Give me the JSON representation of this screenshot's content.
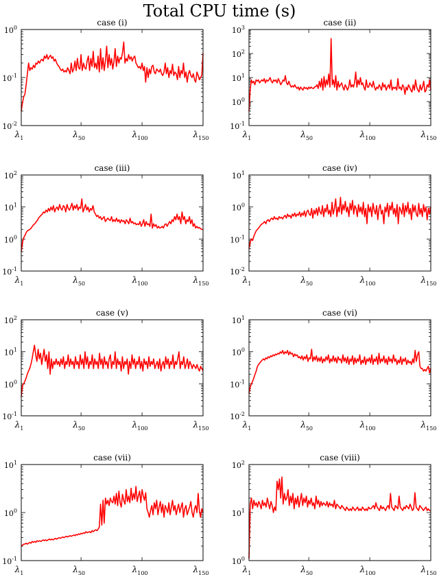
{
  "figure": {
    "title": "Total CPU time (s)"
  },
  "colors": {
    "series": "#ff0000",
    "axes": "#000000"
  },
  "chart_data": [
    {
      "type": "line",
      "title": "case (i)",
      "yscale": "log",
      "ylim": [
        0.01,
        1
      ],
      "yticks": [
        "10",
        "10",
        "10"
      ],
      "yexp": [
        "-2",
        "-1",
        "0"
      ],
      "xlim": [
        1,
        150
      ],
      "xticks": [
        1,
        50,
        100,
        150
      ],
      "xsub": [
        "1",
        "50",
        "100",
        "150"
      ],
      "y": [
        0.02,
        0.03,
        0.04,
        0.045,
        0.07,
        0.12,
        0.2,
        0.14,
        0.16,
        0.15,
        0.18,
        0.16,
        0.2,
        0.19,
        0.22,
        0.2,
        0.23,
        0.24,
        0.22,
        0.28,
        0.25,
        0.3,
        0.24,
        0.27,
        0.29,
        0.25,
        0.27,
        0.22,
        0.24,
        0.2,
        0.18,
        0.17,
        0.15,
        0.14,
        0.15,
        0.13,
        0.14,
        0.13,
        0.16,
        0.14,
        0.12,
        0.2,
        0.13,
        0.15,
        0.22,
        0.14,
        0.25,
        0.16,
        0.15,
        0.3,
        0.14,
        0.2,
        0.16,
        0.15,
        0.22,
        0.28,
        0.14,
        0.25,
        0.17,
        0.35,
        0.16,
        0.2,
        0.15,
        0.28,
        0.13,
        0.4,
        0.15,
        0.26,
        0.14,
        0.22,
        0.45,
        0.16,
        0.3,
        0.18,
        0.25,
        0.15,
        0.22,
        0.4,
        0.17,
        0.28,
        0.2,
        0.26,
        0.24,
        0.33,
        0.55,
        0.2,
        0.25,
        0.22,
        0.3,
        0.24,
        0.27,
        0.22,
        0.26,
        0.28,
        0.2,
        0.18,
        0.16,
        0.17,
        0.15,
        0.2,
        0.14,
        0.17,
        0.08,
        0.16,
        0.1,
        0.15,
        0.12,
        0.17,
        0.18,
        0.13,
        0.12,
        0.15,
        0.14,
        0.13,
        0.15,
        0.12,
        0.11,
        0.13,
        0.2,
        0.12,
        0.16,
        0.1,
        0.14,
        0.12,
        0.19,
        0.11,
        0.13,
        0.12,
        0.09,
        0.17,
        0.1,
        0.14,
        0.12,
        0.2,
        0.1,
        0.13,
        0.08,
        0.12,
        0.14,
        0.11,
        0.1,
        0.12,
        0.09,
        0.08,
        0.13,
        0.11,
        0.09,
        0.1,
        0.11,
        0.32
      ]
    },
    {
      "type": "line",
      "title": "case (ii)",
      "yscale": "log",
      "ylim": [
        0.1,
        1000
      ],
      "yticks": [
        "10",
        "10",
        "10",
        "10",
        "10"
      ],
      "yexp": [
        "-1",
        "0",
        "1",
        "2",
        "3"
      ],
      "xlim": [
        1,
        150
      ],
      "xticks": [
        1,
        50,
        100,
        150
      ],
      "xsub": [
        "1",
        "50",
        "100",
        "150"
      ],
      "y": [
        0.4,
        3,
        8,
        6,
        7,
        5,
        8,
        7,
        8,
        6,
        7,
        8,
        7,
        9,
        6,
        8,
        7,
        8,
        10,
        7,
        6,
        8,
        7,
        8,
        6,
        9,
        7,
        5,
        6,
        8,
        7,
        12,
        6,
        5,
        7,
        5,
        4,
        4.5,
        4,
        5,
        4,
        3.5,
        4,
        3,
        4,
        3.5,
        3,
        4,
        3.5,
        3.8,
        3.2,
        4,
        3.5,
        4,
        3.6,
        3.5,
        4,
        4.2,
        5,
        3.5,
        7,
        4,
        9,
        3,
        11,
        4,
        8,
        5,
        14,
        4,
        420,
        5,
        8,
        4,
        12,
        3,
        7,
        4,
        5,
        6,
        4,
        3,
        5,
        4,
        3,
        4,
        8,
        4,
        5,
        4,
        6,
        17,
        4,
        8,
        5,
        10,
        5,
        6,
        4,
        3,
        8,
        4,
        4,
        6,
        5,
        4,
        7,
        4,
        3,
        4,
        3.5,
        5,
        4,
        3,
        6,
        4,
        5,
        3,
        4,
        5,
        3.5,
        8,
        3,
        4,
        3.5,
        4,
        3,
        9,
        3.5,
        4,
        3,
        5,
        4,
        2,
        4,
        3,
        5,
        4,
        3,
        2.5,
        5,
        3,
        8,
        4,
        3,
        2.5,
        5,
        3,
        4,
        7,
        2.5,
        3,
        5,
        4,
        8,
        3
      ]
    },
    {
      "type": "line",
      "title": "case (iii)",
      "yscale": "log",
      "ylim": [
        0.1,
        100
      ],
      "yticks": [
        "10",
        "10",
        "10",
        "10"
      ],
      "yexp": [
        "-1",
        "0",
        "1",
        "2"
      ],
      "xlim": [
        1,
        150
      ],
      "xticks": [
        1,
        50,
        100,
        150
      ],
      "xsub": [
        "1",
        "50",
        "100",
        "150"
      ],
      "y": [
        0.4,
        0.8,
        1.1,
        1.3,
        1.6,
        1.8,
        1.9,
        2,
        2.2,
        2.5,
        2.8,
        3,
        3.4,
        3.8,
        4.5,
        5,
        5.5,
        6,
        7,
        6.5,
        8,
        7,
        9,
        7.5,
        10,
        8,
        11,
        7,
        9,
        10,
        8,
        12,
        9,
        8,
        11,
        10,
        7,
        12,
        9,
        8,
        10,
        13,
        8,
        11,
        9,
        12,
        8,
        10,
        9,
        18,
        7,
        9,
        12,
        8,
        10,
        7,
        9,
        8,
        11,
        7,
        6,
        5,
        5.5,
        4.5,
        5,
        4,
        4.5,
        5,
        3.5,
        4,
        4.5,
        4,
        3.8,
        5,
        3.5,
        4,
        3.5,
        4.5,
        3.5,
        4,
        3.2,
        4,
        3.5,
        3.8,
        3,
        4,
        3.5,
        3,
        4.5,
        3.2,
        3.5,
        3,
        3.2,
        2.8,
        3,
        2.8,
        3.5,
        2.5,
        3,
        4,
        2.5,
        3.5,
        2.8,
        3,
        2.5,
        6,
        2.2,
        3,
        2.5,
        2.8,
        2.2,
        2.5,
        2.2,
        2.3,
        2.5,
        2.2,
        2.8,
        3,
        2.5,
        3,
        3.5,
        3,
        4,
        3.5,
        5,
        4,
        6,
        4,
        5,
        3,
        7,
        4,
        5,
        3,
        4,
        3.5,
        5,
        3,
        4,
        2.5,
        3,
        2.2,
        2.5,
        2.2,
        2.3,
        2.1,
        2,
        2
      ]
    },
    {
      "type": "line",
      "title": "case (iv)",
      "yscale": "log",
      "ylim": [
        0.01,
        10
      ],
      "yticks": [
        "10",
        "10",
        "10",
        "10"
      ],
      "yexp": [
        "-2",
        "-1",
        "0",
        "1"
      ],
      "xlim": [
        1,
        150
      ],
      "xticks": [
        1,
        50,
        100,
        150
      ],
      "xsub": [
        "1",
        "50",
        "100",
        "150"
      ],
      "y": [
        0.05,
        0.08,
        0.1,
        0.09,
        0.12,
        0.15,
        0.18,
        0.2,
        0.22,
        0.25,
        0.28,
        0.3,
        0.32,
        0.35,
        0.3,
        0.38,
        0.4,
        0.35,
        0.42,
        0.45,
        0.4,
        0.5,
        0.42,
        0.45,
        0.4,
        0.5,
        0.45,
        0.48,
        0.42,
        0.5,
        0.55,
        0.45,
        0.6,
        0.5,
        0.55,
        0.45,
        0.6,
        0.52,
        0.65,
        0.5,
        0.6,
        0.55,
        0.7,
        0.5,
        0.65,
        0.55,
        0.75,
        0.5,
        0.7,
        0.8,
        0.6,
        0.55,
        0.9,
        0.45,
        0.8,
        0.6,
        0.9,
        0.55,
        1,
        0.7,
        0.6,
        1.1,
        0.5,
        0.9,
        0.7,
        1.2,
        0.6,
        0.8,
        0.5,
        1.4,
        0.6,
        0.9,
        1.8,
        0.5,
        1,
        0.7,
        2,
        0.6,
        1.2,
        0.8,
        1.5,
        0.7,
        1,
        0.5,
        1.3,
        0.8,
        1.6,
        0.6,
        1.1,
        0.9,
        0.5,
        1.2,
        0.7,
        1,
        0.6,
        1.4,
        0.5,
        0.9,
        0.3,
        1.2,
        0.7,
        1,
        0.5,
        1.3,
        0.8,
        0.6,
        1.1,
        0.4,
        0.9,
        1.2,
        0.6,
        0.8,
        0.3,
        1,
        0.7,
        1.3,
        0.5,
        1.1,
        0.8,
        1.4,
        0.6,
        0.9,
        0.5,
        1.2,
        0.3,
        1,
        0.8,
        0.6,
        1.3,
        0.5,
        1.1,
        0.7,
        1.4,
        0.6,
        0.9,
        0.4,
        1.2,
        0.7,
        1.1,
        0.6,
        0.5,
        1.3,
        0.6,
        0.9,
        0.5,
        1.2,
        0.7,
        1,
        0.4,
        0.9,
        0.6,
        1
      ]
    },
    {
      "type": "line",
      "title": "case (v)",
      "yscale": "log",
      "ylim": [
        0.1,
        100
      ],
      "yticks": [
        "10",
        "10",
        "10",
        "10"
      ],
      "yexp": [
        "-1",
        "0",
        "1",
        "2"
      ],
      "xlim": [
        1,
        150
      ],
      "xticks": [
        1,
        50,
        100,
        150
      ],
      "xsub": [
        "1",
        "50",
        "100",
        "150"
      ],
      "y": [
        0.4,
        0.9,
        1,
        1.2,
        1.5,
        2,
        2.5,
        3,
        4,
        6,
        10,
        16,
        8,
        5,
        12,
        6,
        9,
        4,
        7,
        12,
        5,
        8,
        3,
        10,
        2,
        6,
        3,
        5,
        4,
        6,
        4,
        5,
        3.5,
        6,
        4,
        7,
        3,
        5,
        4,
        8,
        3.5,
        6,
        4,
        5,
        3,
        7,
        4,
        5,
        3,
        8,
        4,
        6,
        3,
        10,
        4,
        7,
        3,
        5,
        4,
        8,
        3,
        6,
        4,
        5,
        3,
        9,
        4,
        6,
        3,
        7,
        4,
        5,
        3,
        6,
        8,
        3,
        5,
        4,
        10,
        3,
        6,
        4,
        5,
        2.5,
        7,
        3,
        5,
        4,
        6,
        2,
        5,
        3,
        8,
        4,
        6,
        3,
        5,
        4,
        7,
        3,
        5,
        2.5,
        6,
        4,
        5,
        3,
        7,
        3.5,
        5,
        4,
        6,
        3,
        4,
        5,
        3,
        6,
        2.5,
        4,
        5,
        3,
        7,
        4,
        6,
        3,
        5,
        4,
        8,
        3,
        5,
        4,
        6,
        10,
        3,
        5,
        4,
        7,
        3,
        4,
        6,
        3,
        5,
        4,
        3,
        4,
        3.5,
        3,
        4,
        3,
        2.5,
        3.5,
        3,
        2.5
      ]
    },
    {
      "type": "line",
      "title": "case (vi)",
      "yscale": "log",
      "ylim": [
        0.01,
        10
      ],
      "yticks": [
        "10",
        "10",
        "10",
        "10"
      ],
      "yexp": [
        "-2",
        "-1",
        "0",
        "1"
      ],
      "xlim": [
        1,
        150
      ],
      "xticks": [
        1,
        50,
        100,
        150
      ],
      "xsub": [
        "1",
        "50",
        "100",
        "150"
      ],
      "y": [
        0.05,
        0.08,
        0.1,
        0.12,
        0.15,
        0.2,
        0.25,
        0.35,
        0.4,
        0.45,
        0.5,
        0.55,
        0.6,
        0.55,
        0.65,
        0.6,
        0.7,
        0.65,
        0.75,
        0.7,
        0.8,
        0.75,
        0.85,
        0.8,
        0.9,
        0.85,
        1,
        0.9,
        1.1,
        0.85,
        1,
        0.9,
        1.1,
        0.8,
        1,
        0.85,
        0.9,
        0.7,
        0.85,
        0.75,
        0.8,
        0.65,
        0.7,
        0.6,
        0.75,
        0.55,
        0.7,
        0.6,
        0.8,
        0.5,
        0.65,
        0.6,
        1.2,
        0.5,
        0.7,
        0.55,
        0.75,
        0.5,
        0.65,
        0.5,
        0.7,
        0.45,
        0.6,
        0.5,
        0.7,
        0.55,
        0.8,
        0.45,
        0.6,
        0.5,
        0.75,
        0.5,
        0.65,
        0.45,
        0.7,
        0.55,
        0.6,
        0.45,
        0.8,
        0.5,
        0.65,
        0.45,
        0.7,
        0.4,
        0.6,
        0.5,
        0.75,
        0.4,
        0.65,
        0.45,
        0.6,
        0.5,
        0.8,
        0.4,
        0.55,
        0.45,
        0.7,
        0.4,
        0.6,
        0.5,
        0.65,
        0.45,
        0.8,
        0.4,
        0.6,
        0.5,
        0.7,
        0.4,
        0.9,
        0.45,
        0.6,
        0.5,
        0.75,
        0.45,
        0.6,
        0.4,
        0.7,
        0.5,
        0.6,
        0.45,
        0.8,
        0.5,
        0.6,
        0.4,
        0.55,
        0.45,
        0.7,
        0.4,
        0.6,
        0.5,
        0.65,
        0.4,
        0.55,
        0.45,
        0.5,
        0.4,
        0.6,
        0.45,
        1.1,
        0.5,
        0.8,
        1,
        0.35,
        0.3,
        0.3,
        0.25,
        0.28,
        0.25,
        0.3,
        0.35,
        0.22,
        0.3
      ]
    },
    {
      "type": "line",
      "title": "case (vii)",
      "yscale": "log",
      "ylim": [
        0.1,
        10
      ],
      "yticks": [
        "10",
        "10",
        "10"
      ],
      "yexp": [
        "-1",
        "0",
        "1"
      ],
      "xlim": [
        1,
        150
      ],
      "xticks": [
        1,
        50,
        100,
        150
      ],
      "xsub": [
        "1",
        "50",
        "100",
        "150"
      ],
      "y": [
        0.2,
        0.21,
        0.22,
        0.22,
        0.23,
        0.22,
        0.23,
        0.24,
        0.23,
        0.25,
        0.24,
        0.25,
        0.24,
        0.26,
        0.25,
        0.26,
        0.25,
        0.26,
        0.27,
        0.26,
        0.27,
        0.26,
        0.27,
        0.28,
        0.27,
        0.28,
        0.27,
        0.28,
        0.29,
        0.28,
        0.29,
        0.3,
        0.29,
        0.3,
        0.31,
        0.3,
        0.31,
        0.32,
        0.31,
        0.32,
        0.33,
        0.32,
        0.33,
        0.34,
        0.33,
        0.35,
        0.34,
        0.36,
        0.35,
        0.37,
        0.36,
        0.38,
        0.37,
        0.4,
        0.38,
        0.39,
        0.4,
        0.38,
        0.42,
        0.4,
        0.42,
        0.44,
        0.42,
        0.45,
        0.5,
        1.5,
        0.55,
        1.8,
        0.6,
        2,
        1.5,
        1.8,
        1.4,
        2,
        1.7,
        1.6,
        2.2,
        1.5,
        2.5,
        1.4,
        2.8,
        1.6,
        1.3,
        2.4,
        1.8,
        1.5,
        3,
        1.7,
        2.2,
        1.6,
        3.2,
        1.8,
        2.5,
        1.9,
        3.5,
        1.7,
        2.2,
        2.8,
        1.6,
        3,
        2.2,
        1.8,
        2.6,
        1.2,
        1,
        0.8,
        1.1,
        1.4,
        0.9,
        1.6,
        1.2,
        1.8,
        0.9,
        1.3,
        1.7,
        1,
        1.5,
        0.8,
        1.4,
        1.2,
        1,
        1.6,
        0.9,
        1.3,
        1.8,
        1.1,
        1.4,
        0.9,
        1.2,
        1.5,
        1,
        1.3,
        1.6,
        0.8,
        1.2,
        1.4,
        0.9,
        1.1,
        1.3,
        1.7,
        1,
        0.8,
        1.2,
        1.4,
        1,
        2.5,
        1.1,
        0.8,
        1.2,
        1
      ]
    },
    {
      "type": "line",
      "title": "case (viii)",
      "yscale": "log",
      "ylim": [
        1,
        100
      ],
      "yticks": [
        "10",
        "10",
        "10"
      ],
      "yexp": [
        "0",
        "1",
        "2"
      ],
      "xlim": [
        1,
        150
      ],
      "xticks": [
        1,
        50,
        100,
        150
      ],
      "xsub": [
        "1",
        "50",
        "100",
        "150"
      ],
      "y": [
        1.1,
        15,
        20,
        12,
        18,
        14,
        16,
        13,
        17,
        15,
        12,
        18,
        14,
        16,
        13,
        20,
        15,
        12,
        17,
        14,
        10,
        13,
        11,
        45,
        30,
        50,
        20,
        55,
        15,
        25,
        18,
        20,
        30,
        14,
        22,
        16,
        25,
        12,
        20,
        15,
        22,
        13,
        18,
        25,
        14,
        20,
        16,
        22,
        13,
        18,
        15,
        20,
        14,
        16,
        12,
        22,
        15,
        18,
        13,
        17,
        14,
        16,
        15,
        14,
        17,
        13,
        16,
        14,
        15,
        13,
        18,
        12,
        15,
        14,
        13,
        12,
        14,
        13,
        12,
        11,
        13,
        12,
        11,
        12,
        11,
        13,
        12,
        11,
        12,
        13,
        11,
        12,
        11,
        13,
        12,
        11,
        12,
        11,
        13,
        12,
        12,
        13,
        14,
        12,
        16,
        13,
        12,
        11,
        14,
        12,
        13,
        12,
        11,
        13,
        14,
        12,
        25,
        13,
        12,
        11,
        14,
        13,
        12,
        22,
        13,
        12,
        11,
        13,
        12,
        14,
        13,
        12,
        15,
        13,
        11,
        12,
        26,
        13,
        12,
        11,
        14,
        13,
        12,
        11,
        12,
        13,
        11,
        12,
        11,
        11
      ]
    }
  ]
}
